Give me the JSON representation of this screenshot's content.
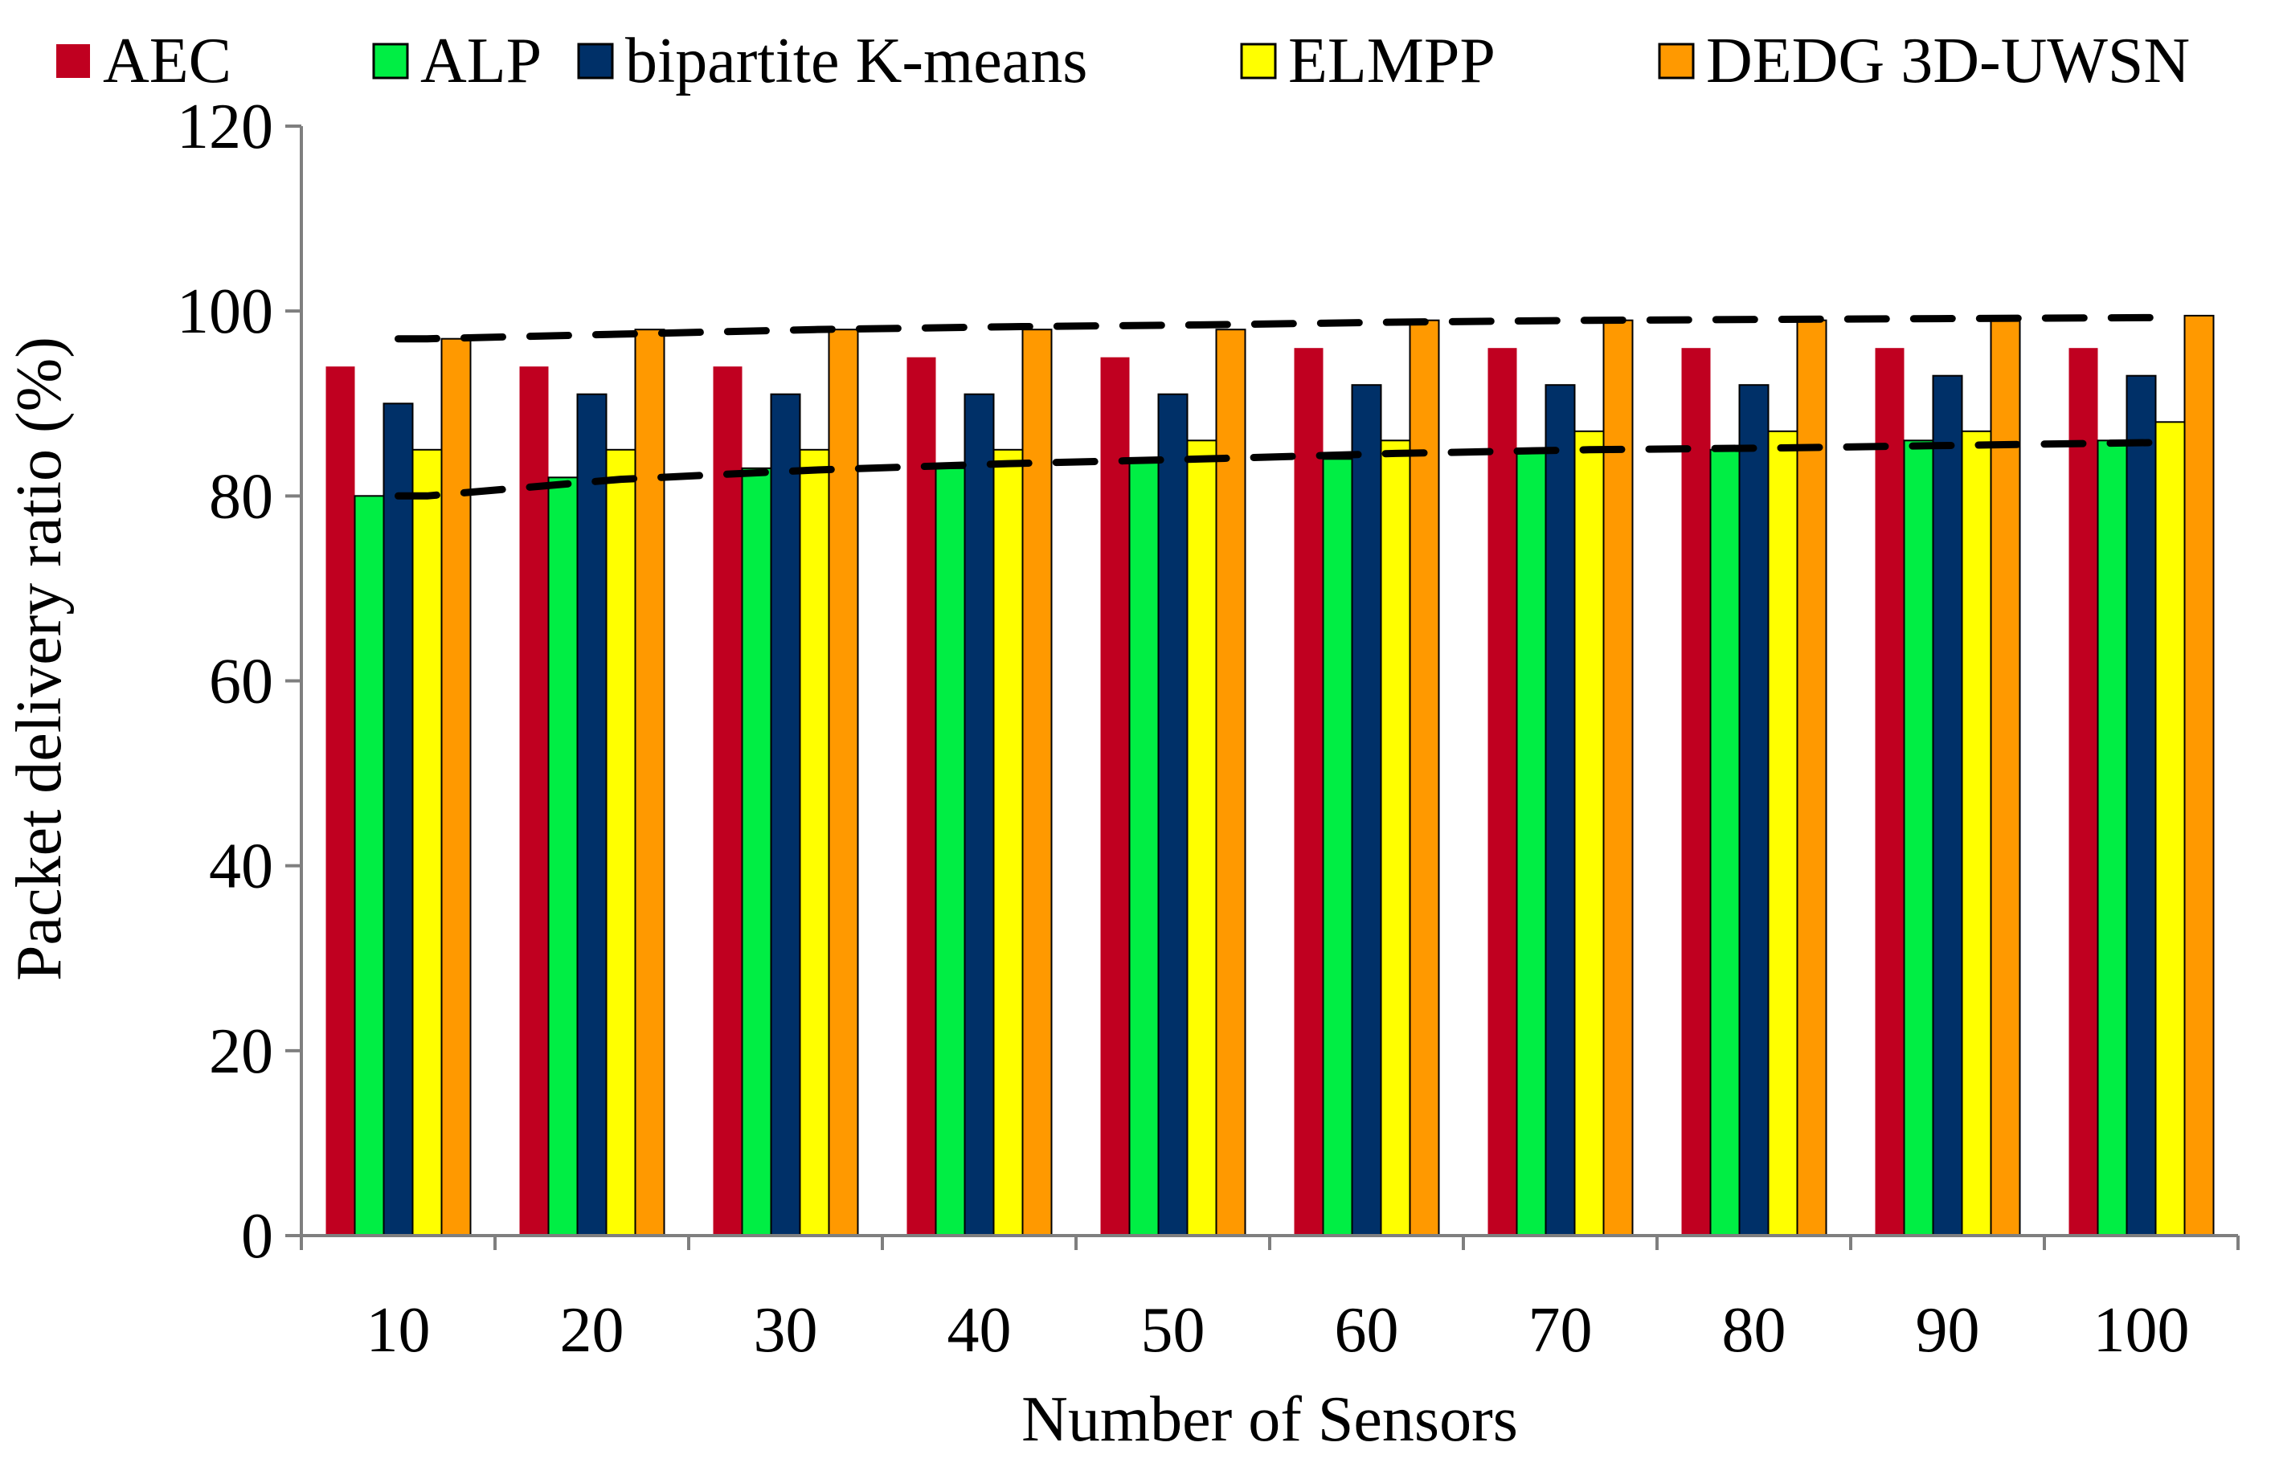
{
  "chart_data": {
    "type": "bar",
    "title": "",
    "xlabel": "Number of Sensors",
    "ylabel": "Packet delivery ratio (%)",
    "ylim": [
      0,
      120
    ],
    "yticks": [
      0,
      20,
      40,
      60,
      80,
      100,
      120
    ],
    "categories": [
      "10",
      "20",
      "30",
      "40",
      "50",
      "60",
      "70",
      "80",
      "90",
      "100"
    ],
    "legend_position": "top",
    "series": [
      {
        "name": "AEC",
        "color": "#c00020",
        "values": [
          94,
          94,
          94,
          95,
          95,
          96,
          96,
          96,
          96,
          96
        ]
      },
      {
        "name": "ALP",
        "color": "#00ee44",
        "values": [
          80,
          82,
          83,
          83,
          84,
          84,
          85,
          85,
          86,
          86
        ]
      },
      {
        "name": "bipartite K-means",
        "color": "#003068",
        "values": [
          90,
          91,
          91,
          91,
          91,
          92,
          92,
          92,
          93,
          93
        ]
      },
      {
        "name": "ELMPP",
        "color": "#ffff00",
        "values": [
          85,
          85,
          85,
          85,
          86,
          86,
          87,
          87,
          87,
          88
        ]
      },
      {
        "name": "DEDG 3D-UWSN",
        "color": "#ff9900",
        "values": [
          97,
          98,
          98,
          98,
          98,
          99,
          99,
          99,
          99,
          99.5
        ]
      }
    ],
    "trend_lines": [
      {
        "name": "upper",
        "style": "dashed",
        "values": [
          97,
          97.5,
          98,
          98.3,
          98.5,
          98.8,
          99,
          99.1,
          99.2,
          99.3
        ]
      },
      {
        "name": "lower",
        "style": "dashed",
        "values": [
          80,
          81.8,
          82.8,
          83.5,
          84,
          84.6,
          85,
          85.2,
          85.5,
          85.8
        ]
      }
    ]
  }
}
